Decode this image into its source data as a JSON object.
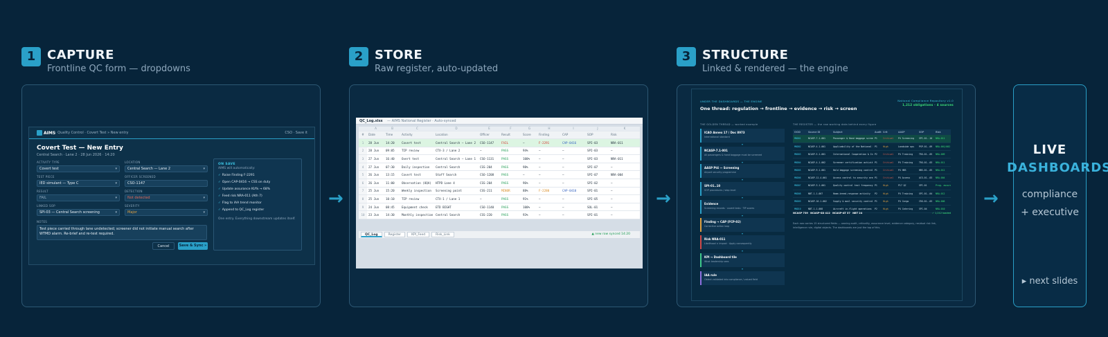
{
  "steps": [
    {
      "num": "1",
      "title": "CAPTURE",
      "subtitle": "Frontline QC form — dropdowns"
    },
    {
      "num": "2",
      "title": "STORE",
      "subtitle": "Raw register, auto-updated"
    },
    {
      "num": "3",
      "title": "STRUCTURE",
      "subtitle": "Linked & rendered — the engine"
    }
  ],
  "arrow": "→",
  "capture": {
    "brand": "AIMS",
    "crumb": "· Quality Control · Covert Test » New entry",
    "user": "CSO · Save it",
    "title": "Covert Test — New Entry",
    "meta": "Central Search · Lane 2 · 28 Jun 2026 · 14:20",
    "fields": {
      "activity_type": {
        "label": "ACTIVITY TYPE",
        "value": "Covert test"
      },
      "location": {
        "label": "LOCATION",
        "value": "Central Search — Lane 2"
      },
      "test_piece": {
        "label": "TEST PIECE",
        "value": "IED simulant — Type C"
      },
      "officer": {
        "label": "OFFICER SCREENED",
        "value": "CSO-1147"
      },
      "result": {
        "label": "RESULT",
        "value": "FAIL"
      },
      "detection": {
        "label": "DETECTION",
        "value": "Not detected"
      },
      "linked_sop": {
        "label": "LINKED SOP",
        "value": "SPI-03 — Central Search screening"
      },
      "severity": {
        "label": "SEVERITY",
        "value": "Major"
      }
    },
    "notes": {
      "label": "NOTES",
      "value": "Test piece carried through lane undetected; screener did not initiate manual search after WTMD alarm. Re-brief and re-test required."
    },
    "cancel": "Cancel",
    "save": "Save & Sync »",
    "onsave": {
      "heading": "ON SAVE",
      "sub": "AIMS will automatically:",
      "items": [
        "Raise Finding F-2291",
        "Open CAP-0416 → CSS on duty",
        "Update assurance KU% → 68%",
        "Feed risk NRA-011 (Ath 7)",
        "Flag to IAA trend monitor",
        "Append to QC_Log register"
      ],
      "check": "✓",
      "foot": "One entry. Everything downstream updates itself."
    }
  },
  "store": {
    "filename": "QC_Log.xlsx",
    "subtitle": "— AIMS National Register · Auto-synced",
    "col_letters": [
      "",
      "A",
      "B",
      "C",
      "D",
      "E",
      "F",
      "G",
      "H",
      "I",
      "J",
      "K"
    ],
    "headers": [
      "#",
      "Date",
      "Time",
      "Activity",
      "Location",
      "Officer",
      "Result",
      "Score",
      "Finding",
      "CAP",
      "SOP",
      "Risk"
    ],
    "rows": [
      [
        "1",
        "28 Jun",
        "14:20",
        "Covert test",
        "Central Search — Lane 2",
        "CSO-1147",
        "FAIL",
        "—",
        "F-2291",
        "CAP-0416",
        "SPI-03",
        "NRA-011"
      ],
      [
        "2",
        "28 Jun",
        "09:05",
        "TIP review",
        "CTX-3 / Lane 2",
        "—",
        "PASS",
        "94%",
        "—",
        "—",
        "SPI-03",
        "—"
      ],
      [
        "3",
        "27 Jun",
        "16:40",
        "Overt test",
        "Central Search — Lane 1",
        "CSO-1131",
        "PASS",
        "100%",
        "—",
        "—",
        "SPI-03",
        "NRA-011"
      ],
      [
        "4",
        "27 Jun",
        "07:30",
        "Daily inspection",
        "Central Search",
        "CSS-204",
        "PASS",
        "98%",
        "—",
        "—",
        "SPI-07",
        "—"
      ],
      [
        "5",
        "26 Jun",
        "13:15",
        "Covert test",
        "Staff Search",
        "CSO-1208",
        "PASS",
        "—",
        "—",
        "—",
        "SPI-07",
        "NRA-004"
      ],
      [
        "6",
        "26 Jun",
        "11:00",
        "Observation (OQA)",
        "HTPD Lane 4",
        "CSS-204",
        "PASS",
        "96%",
        "—",
        "—",
        "SPI-02",
        "—"
      ],
      [
        "7",
        "25 Jun",
        "15:20",
        "Weekly inspection",
        "Screening point",
        "CSS-211",
        "MINOR",
        "88%",
        "F-2280",
        "CAP-0410",
        "SPI-01",
        "—"
      ],
      [
        "8",
        "25 Jun",
        "10:10",
        "TIP review",
        "CTX-1 / Lane 1",
        "—",
        "PASS",
        "91%",
        "—",
        "—",
        "SPI-05",
        "—"
      ],
      [
        "9",
        "24 Jun",
        "08:45",
        "Equipment check",
        "ETD BIGHT",
        "CSO-1140",
        "PASS",
        "100%",
        "—",
        "—",
        "SOL-01",
        "—"
      ],
      [
        "10",
        "23 Jun",
        "14:30",
        "Monthly inspection",
        "Central Search",
        "CSS-220",
        "PASS",
        "93%",
        "—",
        "—",
        "SPI-01",
        "—"
      ]
    ],
    "tabs": [
      "QC_Log",
      "Register",
      "KPI_Feed",
      "Risk_Link"
    ],
    "status": "▲ new row synced 14:20"
  },
  "structure": {
    "kicker": "UNDER THE DASHBOARDS — THE ENGINE",
    "headline": "One thread: regulation → frontline → evidence → risk → screen",
    "right_kicker": "National Compliance Repository v1.0",
    "right_count": "1,212 obligations · 4 sources",
    "threads_heading": "THE GOLDEN THREAD — worked example",
    "register_heading": "THE REGISTER — the raw working data behind every figure",
    "threads": [
      {
        "t": "ICAO Annex 17 / Doc 8973",
        "d": "International standard"
      },
      {
        "t": "NCASP-7.1-001",
        "d": "All passengers & hand baggage must be screened"
      },
      {
        "t": "AASP Pt4 — Screening",
        "d": "Airport security programme"
      },
      {
        "t": "SPI-01..10",
        "d": "SOP procedures / step level"
      },
      {
        "t": "Evidence",
        "d": "Screening records · covert tests · TIP scores"
      },
      {
        "t": "Finding → CAP (FCP-02)",
        "d": "Corrective action loop"
      },
      {
        "t": "Risk NRA-011",
        "d": "Likelihood × impact · Apply consequently"
      },
      {
        "t": "KPI → Dashboard tile",
        "d": "What leadership sees"
      },
      {
        "t": "IAA rule",
        "d": "Oblect validated into compliance / valued field"
      }
    ],
    "reg_headers": [
      "OCID",
      "Source ID",
      "Subject",
      "Audit",
      "Crit",
      "AASP",
      "SOP",
      "Risk"
    ],
    "reg_rows": [
      [
        "MND01",
        "NCASP-7.1-001",
        "Passenger & Hand baggage screening",
        "P1",
        "Critical",
        "P4 Screening",
        "SPI-01..10",
        "NRA-011"
      ],
      [
        "MND02",
        "NCASP-4.1-001",
        "Applicability of the National Program",
        "P1",
        "High",
        "Landside ops",
        "PSP-01..09",
        "NRA-001/002"
      ],
      [
        "MND03",
        "NCASP-5.1-001",
        "International Cooperation & Info",
        "P2",
        "Critical",
        "P4 Training",
        "TRG-01..05",
        "NRA-009"
      ],
      [
        "MND04",
        "NCASP-4.1-002",
        "Screener certification activity",
        "P1",
        "Critical",
        "P4 Training",
        "TRG-01..03",
        "NRA-011"
      ],
      [
        "MND05",
        "NCASP-9.1-001",
        "Hold baggage screening controls",
        "P1",
        "Critical",
        "P4 HBS",
        "HBS-01..05",
        "NRA-012"
      ],
      [
        "MND06",
        "NCASP-11.4-001",
        "Access control to security areas",
        "P1",
        "Critical",
        "P4 Access",
        "ACS-01..03",
        "NRA-004"
      ],
      [
        "MND07",
        "NCASP-3.1-001",
        "Quality control test frequency",
        "P1",
        "High",
        "P17 QC",
        "SPI-01",
        "Prog. assurance"
      ],
      [
        "MND08",
        "NBT-1.1-007",
        "Home-breed-response activity",
        "P2",
        "High",
        "P4 Training",
        "SPI-01..04",
        "NRA-012"
      ],
      [
        "MND09",
        "NCASP-10.1-002",
        "Supply & mail security controls",
        "P1",
        "High",
        "P4 Cargo",
        "CRG-01..03",
        "NRA-006"
      ],
      [
        "MND10",
        "NBT-1.1-008",
        "Aircraft in-flight operations",
        "P2",
        "High",
        "P4 Catering",
        "SPI-04",
        "NRA-010"
      ]
    ],
    "reg_footer_items": [
      "NCASP 739",
      "NCASP-SD 412",
      "NCASP-AT 37",
      "NBT 24"
    ],
    "reg_footer_right": "✓ 1,212 loaded",
    "note": "Each row carries 15 structured fields — owning audit, criticality, assurance level, evidence category, residual risk link, intelligence rule, digital objects. The dashboards are just the top of this."
  },
  "live": {
    "line1": "LIVE",
    "line2": "DASHBOARDS",
    "line3": "compliance",
    "line4": "+ executive",
    "next": "▸ next slides"
  }
}
